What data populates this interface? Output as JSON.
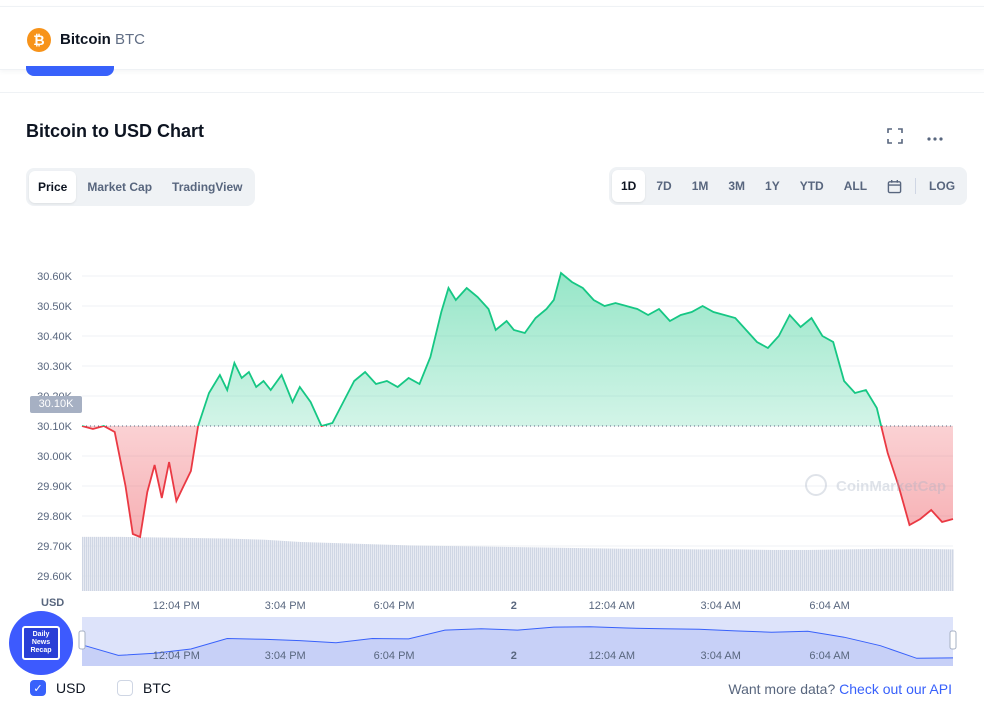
{
  "header": {
    "coin_logo_glyph": "₿",
    "coin_name": "Bitcoin",
    "coin_symbol": "BTC"
  },
  "chart_title": "Bitcoin to USD Chart",
  "tabs": [
    {
      "label": "Price",
      "active": true
    },
    {
      "label": "Market Cap",
      "active": false
    },
    {
      "label": "TradingView",
      "active": false
    }
  ],
  "ranges": [
    {
      "label": "1D",
      "active": true
    },
    {
      "label": "7D",
      "active": false
    },
    {
      "label": "1M",
      "active": false
    },
    {
      "label": "3M",
      "active": false
    },
    {
      "label": "1Y",
      "active": false
    },
    {
      "label": "YTD",
      "active": false
    },
    {
      "label": "ALL",
      "active": false
    }
  ],
  "log_label": "LOG",
  "icons": {
    "fullscreen": "fullscreen-icon",
    "more": "more-icon",
    "calendar": "calendar-icon"
  },
  "currency_label": "USD",
  "watermark": "CoinMarketCap",
  "overlay_logo": {
    "text": "Daily News Recap"
  },
  "legend": {
    "usd": "USD",
    "btc": "BTC"
  },
  "more_data": {
    "text": "Want more data?",
    "link": "Check out our API"
  },
  "colors": {
    "up": "#16c784",
    "down": "#ea3943",
    "accent": "#3861fb"
  },
  "chart_data": {
    "type": "area",
    "reference_price": 30100,
    "reference_label": "30.10K",
    "ylim": [
      29550,
      30700
    ],
    "yticks": [
      {
        "value": 30600,
        "label": "30.60K"
      },
      {
        "value": 30500,
        "label": "30.50K"
      },
      {
        "value": 30400,
        "label": "30.40K"
      },
      {
        "value": 30300,
        "label": "30.30K"
      },
      {
        "value": 30200,
        "label": "30.20K"
      },
      {
        "value": 30100,
        "label": "30.10K"
      },
      {
        "value": 30000,
        "label": "30.00K"
      },
      {
        "value": 29900,
        "label": "29.90K"
      },
      {
        "value": 29800,
        "label": "29.80K"
      },
      {
        "value": 29700,
        "label": "29.70K"
      },
      {
        "value": 29600,
        "label": "29.60K"
      }
    ],
    "xlim": [
      0,
      24
    ],
    "xticks": [
      {
        "value": 2.6,
        "label": "12:04 PM"
      },
      {
        "value": 5.6,
        "label": "3:04 PM"
      },
      {
        "value": 8.6,
        "label": "6:04 PM"
      },
      {
        "value": 11.9,
        "label": "2"
      },
      {
        "value": 14.6,
        "label": "12:04 AM"
      },
      {
        "value": 17.6,
        "label": "3:04 AM"
      },
      {
        "value": 20.6,
        "label": "6:04 AM"
      }
    ],
    "price": [
      [
        0,
        30100
      ],
      [
        0.3,
        30090
      ],
      [
        0.6,
        30100
      ],
      [
        0.9,
        30080
      ],
      [
        1.2,
        29900
      ],
      [
        1.4,
        29740
      ],
      [
        1.6,
        29730
      ],
      [
        1.8,
        29880
      ],
      [
        2.0,
        29970
      ],
      [
        2.2,
        29860
      ],
      [
        2.4,
        29980
      ],
      [
        2.6,
        29850
      ],
      [
        2.8,
        29900
      ],
      [
        3.0,
        29950
      ],
      [
        3.2,
        30100
      ],
      [
        3.5,
        30210
      ],
      [
        3.8,
        30270
      ],
      [
        4.0,
        30220
      ],
      [
        4.2,
        30310
      ],
      [
        4.4,
        30260
      ],
      [
        4.6,
        30280
      ],
      [
        4.8,
        30230
      ],
      [
        5.0,
        30250
      ],
      [
        5.2,
        30220
      ],
      [
        5.5,
        30270
      ],
      [
        5.8,
        30180
      ],
      [
        6.0,
        30230
      ],
      [
        6.3,
        30180
      ],
      [
        6.6,
        30100
      ],
      [
        6.9,
        30110
      ],
      [
        7.2,
        30180
      ],
      [
        7.5,
        30250
      ],
      [
        7.8,
        30280
      ],
      [
        8.1,
        30240
      ],
      [
        8.4,
        30250
      ],
      [
        8.7,
        30230
      ],
      [
        9.0,
        30260
      ],
      [
        9.3,
        30240
      ],
      [
        9.6,
        30330
      ],
      [
        9.9,
        30480
      ],
      [
        10.1,
        30560
      ],
      [
        10.3,
        30520
      ],
      [
        10.6,
        30560
      ],
      [
        10.9,
        30530
      ],
      [
        11.2,
        30490
      ],
      [
        11.4,
        30420
      ],
      [
        11.7,
        30450
      ],
      [
        11.9,
        30420
      ],
      [
        12.2,
        30410
      ],
      [
        12.5,
        30460
      ],
      [
        12.8,
        30490
      ],
      [
        13.0,
        30520
      ],
      [
        13.2,
        30610
      ],
      [
        13.5,
        30580
      ],
      [
        13.8,
        30560
      ],
      [
        14.1,
        30520
      ],
      [
        14.4,
        30500
      ],
      [
        14.7,
        30510
      ],
      [
        15.0,
        30500
      ],
      [
        15.3,
        30490
      ],
      [
        15.6,
        30470
      ],
      [
        15.9,
        30490
      ],
      [
        16.2,
        30450
      ],
      [
        16.5,
        30470
      ],
      [
        16.8,
        30480
      ],
      [
        17.1,
        30500
      ],
      [
        17.4,
        30480
      ],
      [
        17.7,
        30470
      ],
      [
        18.0,
        30460
      ],
      [
        18.3,
        30420
      ],
      [
        18.6,
        30380
      ],
      [
        18.9,
        30360
      ],
      [
        19.2,
        30400
      ],
      [
        19.5,
        30470
      ],
      [
        19.8,
        30430
      ],
      [
        20.1,
        30460
      ],
      [
        20.4,
        30400
      ],
      [
        20.7,
        30380
      ],
      [
        21.0,
        30250
      ],
      [
        21.3,
        30210
      ],
      [
        21.6,
        30220
      ],
      [
        21.9,
        30160
      ],
      [
        22.2,
        30010
      ],
      [
        22.5,
        29900
      ],
      [
        22.8,
        29770
      ],
      [
        23.1,
        29790
      ],
      [
        23.4,
        29820
      ],
      [
        23.7,
        29780
      ],
      [
        24.0,
        29790
      ]
    ],
    "volume_range": [
      0,
      1
    ],
    "volume": [
      [
        0,
        0.95
      ],
      [
        1,
        0.95
      ],
      [
        2,
        0.94
      ],
      [
        3,
        0.93
      ],
      [
        4,
        0.92
      ],
      [
        5,
        0.9
      ],
      [
        6,
        0.86
      ],
      [
        7,
        0.84
      ],
      [
        8,
        0.82
      ],
      [
        9,
        0.8
      ],
      [
        10,
        0.79
      ],
      [
        11,
        0.78
      ],
      [
        12,
        0.77
      ],
      [
        13,
        0.76
      ],
      [
        14,
        0.75
      ],
      [
        15,
        0.74
      ],
      [
        16,
        0.74
      ],
      [
        17,
        0.73
      ],
      [
        18,
        0.73
      ],
      [
        19,
        0.72
      ],
      [
        20,
        0.72
      ],
      [
        21,
        0.73
      ],
      [
        22,
        0.74
      ],
      [
        23,
        0.74
      ],
      [
        24,
        0.73
      ]
    ],
    "navigator": [
      [
        0,
        30100
      ],
      [
        1,
        29850
      ],
      [
        2,
        29900
      ],
      [
        3,
        30000
      ],
      [
        4,
        30250
      ],
      [
        5,
        30230
      ],
      [
        6,
        30200
      ],
      [
        7,
        30150
      ],
      [
        8,
        30250
      ],
      [
        9,
        30240
      ],
      [
        10,
        30450
      ],
      [
        11,
        30480
      ],
      [
        12,
        30450
      ],
      [
        13,
        30520
      ],
      [
        14,
        30530
      ],
      [
        15,
        30500
      ],
      [
        16,
        30480
      ],
      [
        17,
        30470
      ],
      [
        18,
        30430
      ],
      [
        19,
        30400
      ],
      [
        20,
        30420
      ],
      [
        21,
        30280
      ],
      [
        22,
        30080
      ],
      [
        23,
        29780
      ],
      [
        24,
        29790
      ]
    ]
  }
}
